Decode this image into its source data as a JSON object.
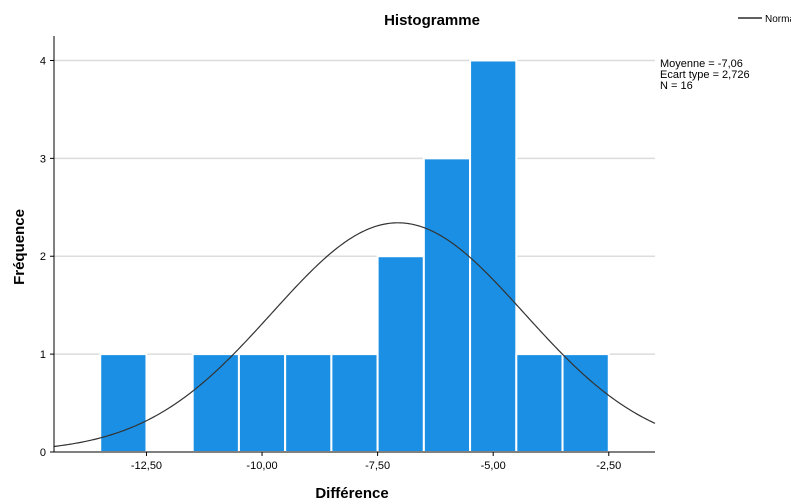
{
  "chart_data": {
    "type": "bar",
    "title": "Histogramme",
    "xlabel": "Différence",
    "ylabel": "Fréquence",
    "xlim": [
      -14.5,
      -1.5
    ],
    "ylim": [
      0,
      4.25
    ],
    "bin_width": 1.0,
    "bins": [
      {
        "start": -13.5,
        "end": -12.5,
        "count": 1
      },
      {
        "start": -12.5,
        "end": -11.5,
        "count": 0
      },
      {
        "start": -11.5,
        "end": -10.5,
        "count": 1
      },
      {
        "start": -10.5,
        "end": -9.5,
        "count": 1
      },
      {
        "start": -9.5,
        "end": -8.5,
        "count": 1
      },
      {
        "start": -8.5,
        "end": -7.5,
        "count": 1
      },
      {
        "start": -7.5,
        "end": -6.5,
        "count": 2
      },
      {
        "start": -6.5,
        "end": -5.5,
        "count": 3
      },
      {
        "start": -5.5,
        "end": -4.5,
        "count": 4
      },
      {
        "start": -4.5,
        "end": -3.5,
        "count": 1
      },
      {
        "start": -3.5,
        "end": -2.5,
        "count": 1
      }
    ],
    "xticks": [
      -12.5,
      -10.0,
      -7.5,
      -5.0,
      -2.5
    ],
    "xtick_labels": [
      "-12,50",
      "-10,00",
      "-7,50",
      "-5,00",
      "-2,50"
    ],
    "yticks": [
      0,
      1,
      2,
      3,
      4
    ],
    "ytick_labels": [
      "0",
      "1",
      "2",
      "3",
      "4"
    ],
    "normal_curve": {
      "name": "Normale",
      "mean": -7.06,
      "sd": 2.726,
      "n": 16
    },
    "stats_lines": [
      "Moyenne = -7,06",
      "Ecart type = 2,726",
      "N = 16"
    ],
    "legend": {
      "label": "Normale",
      "position": "top-right"
    },
    "grid": "horizontal",
    "colors": {
      "bar": "#1a8fe3",
      "bar_edge": "#ffffff",
      "curve": "#333333",
      "grid": "#dcdcdc",
      "axis": "#000000"
    }
  }
}
